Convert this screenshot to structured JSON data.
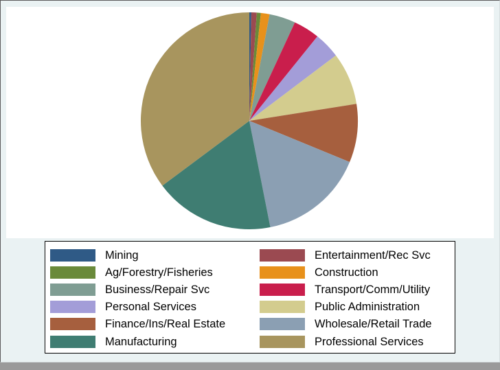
{
  "chart_data": {
    "type": "pie",
    "title": "",
    "start_angle_deg": 90,
    "direction": "clockwise",
    "slices": [
      {
        "label": "Mining",
        "value": 0.3,
        "color": "#2f5a86"
      },
      {
        "label": "Entertainment/Rec Svc",
        "value": 0.8,
        "color": "#9b4a51"
      },
      {
        "label": "Ag/Forestry/Fisheries",
        "value": 0.6,
        "color": "#6a8a3a"
      },
      {
        "label": "Construction",
        "value": 1.3,
        "color": "#e8911b"
      },
      {
        "label": "Business/Repair Svc",
        "value": 3.9,
        "color": "#7f9d93"
      },
      {
        "label": "Transport/Comm/Utility",
        "value": 3.9,
        "color": "#c91e4c"
      },
      {
        "label": "Personal Services",
        "value": 3.9,
        "color": "#a39dd8"
      },
      {
        "label": "Public Administration",
        "value": 7.8,
        "color": "#d3cc8e"
      },
      {
        "label": "Finance/Ins/Real Estate",
        "value": 8.7,
        "color": "#a65f3e"
      },
      {
        "label": "Wholesale/Retail Trade",
        "value": 15.7,
        "color": "#8b9fb3"
      },
      {
        "label": "Manufacturing",
        "value": 17.9,
        "color": "#3f7d72"
      },
      {
        "label": "Professional Services",
        "value": 35.2,
        "color": "#a8955e"
      }
    ],
    "legend_position": "bottom",
    "legend_columns": 2
  }
}
